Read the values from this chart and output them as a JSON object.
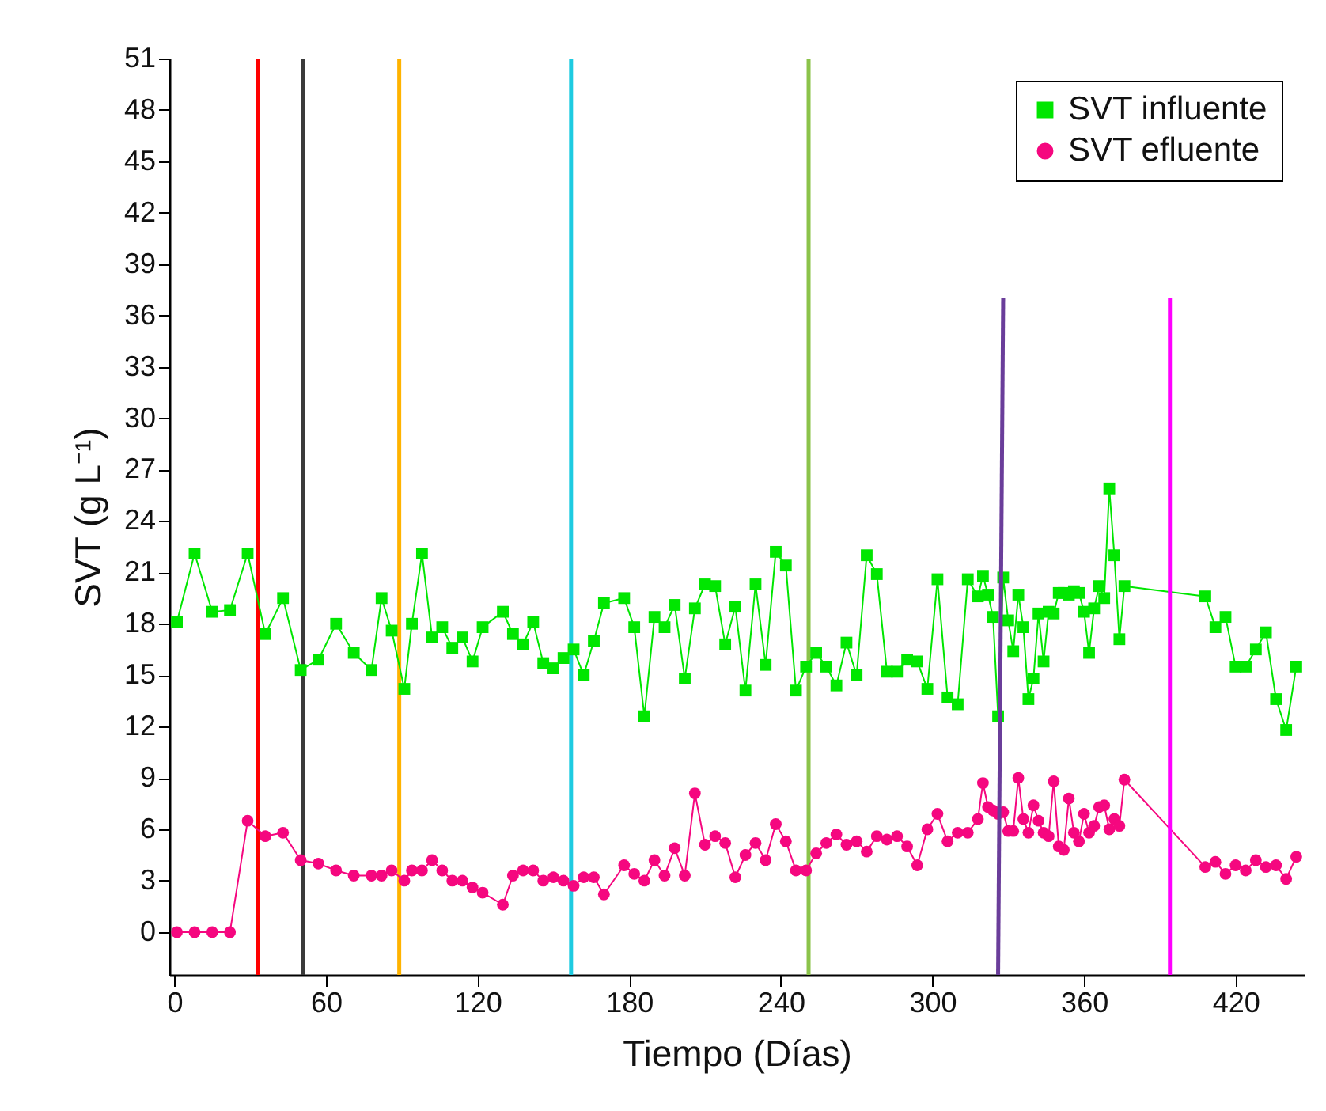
{
  "chart_data": {
    "type": "line",
    "xlabel": "Tiempo (Días)",
    "ylabel": "SVT (g L⁻¹)",
    "xlim": [
      -2,
      447
    ],
    "ylim": [
      -2.5,
      51
    ],
    "xticks": [
      0,
      60,
      120,
      180,
      240,
      300,
      360,
      420
    ],
    "yticks": [
      0,
      3,
      6,
      9,
      12,
      15,
      18,
      21,
      24,
      27,
      30,
      33,
      36,
      39,
      42,
      45,
      48,
      51
    ],
    "legend": "top right",
    "series": [
      {
        "name": "SVT influente",
        "color": "#00e600",
        "marker": "square",
        "x": [
          1,
          8,
          15,
          22,
          29,
          36,
          43,
          50,
          57,
          64,
          71,
          78,
          82,
          86,
          91,
          94,
          98,
          102,
          106,
          110,
          114,
          118,
          122,
          130,
          134,
          138,
          142,
          146,
          150,
          154,
          158,
          162,
          166,
          170,
          178,
          182,
          186,
          190,
          194,
          198,
          202,
          206,
          210,
          214,
          218,
          222,
          226,
          230,
          234,
          238,
          242,
          246,
          250,
          254,
          258,
          262,
          266,
          270,
          274,
          278,
          282,
          286,
          290,
          294,
          298,
          302,
          306,
          310,
          314,
          318,
          320,
          322,
          324,
          326,
          328,
          330,
          332,
          334,
          336,
          338,
          340,
          342,
          344,
          346,
          348,
          350,
          352,
          354,
          356,
          358,
          360,
          362,
          364,
          366,
          368,
          370,
          372,
          374,
          376,
          408,
          412,
          416,
          420,
          424,
          428,
          432,
          436,
          440,
          444
        ],
        "values": [
          18.1,
          22.1,
          18.7,
          18.8,
          22.1,
          17.4,
          19.5,
          15.3,
          15.9,
          18.0,
          16.3,
          15.3,
          19.5,
          17.6,
          14.2,
          18.0,
          22.1,
          17.2,
          17.8,
          16.6,
          17.2,
          15.8,
          17.8,
          18.7,
          17.4,
          16.8,
          18.1,
          15.7,
          15.4,
          16.0,
          16.5,
          15.0,
          17.0,
          19.2,
          19.5,
          17.8,
          12.6,
          18.4,
          17.8,
          19.1,
          14.8,
          18.9,
          20.3,
          20.2,
          16.8,
          19.0,
          14.1,
          20.3,
          15.6,
          22.2,
          21.4,
          14.1,
          15.5,
          16.3,
          15.5,
          14.4,
          16.9,
          15.0,
          22.0,
          20.9,
          15.2,
          15.2,
          15.9,
          15.8,
          14.2,
          20.6,
          13.7,
          13.3,
          20.6,
          19.6,
          20.8,
          19.7,
          18.4,
          12.6,
          20.7,
          18.2,
          16.4,
          19.7,
          17.8,
          13.6,
          14.8,
          18.6,
          15.8,
          18.7,
          18.6,
          19.8,
          19.8,
          19.7,
          19.9,
          19.8,
          18.7,
          16.3,
          18.9,
          20.2,
          19.5,
          25.9,
          22.0,
          17.1,
          20.2,
          19.6,
          17.8,
          18.4,
          15.5,
          15.5,
          16.5,
          17.5,
          13.6,
          11.8,
          15.5
        ]
      },
      {
        "name": "SVT efluente",
        "color": "#f5077f",
        "marker": "circle",
        "x": [
          1,
          8,
          15,
          22,
          29,
          36,
          43,
          50,
          57,
          64,
          71,
          78,
          82,
          86,
          91,
          94,
          98,
          102,
          106,
          110,
          114,
          118,
          122,
          130,
          134,
          138,
          142,
          146,
          150,
          154,
          158,
          162,
          166,
          170,
          178,
          182,
          186,
          190,
          194,
          198,
          202,
          206,
          210,
          214,
          218,
          222,
          226,
          230,
          234,
          238,
          242,
          246,
          250,
          254,
          258,
          262,
          266,
          270,
          274,
          278,
          282,
          286,
          290,
          294,
          298,
          302,
          306,
          310,
          314,
          318,
          320,
          322,
          324,
          326,
          328,
          330,
          332,
          334,
          336,
          338,
          340,
          342,
          344,
          346,
          348,
          350,
          352,
          354,
          356,
          358,
          360,
          362,
          364,
          366,
          368,
          370,
          372,
          374,
          376,
          408,
          412,
          416,
          420,
          424,
          428,
          432,
          436,
          440,
          444
        ],
        "values": [
          0,
          0,
          0,
          0,
          6.5,
          5.6,
          5.8,
          4.2,
          4.0,
          3.6,
          3.3,
          3.3,
          3.3,
          3.6,
          3.0,
          3.6,
          3.6,
          4.2,
          3.6,
          3.0,
          3.0,
          2.6,
          2.3,
          1.6,
          3.3,
          3.6,
          3.6,
          3.0,
          3.2,
          3.0,
          2.7,
          3.2,
          3.2,
          2.2,
          3.9,
          3.4,
          3.0,
          4.2,
          3.3,
          4.9,
          3.3,
          8.1,
          5.1,
          5.6,
          5.2,
          3.2,
          4.5,
          5.2,
          4.2,
          6.3,
          5.3,
          3.6,
          3.6,
          4.6,
          5.2,
          5.7,
          5.1,
          5.3,
          4.7,
          5.6,
          5.4,
          5.6,
          5.0,
          3.9,
          6.0,
          6.9,
          5.3,
          5.8,
          5.8,
          6.6,
          8.7,
          7.3,
          7.1,
          6.9,
          7.0,
          5.9,
          5.9,
          9.0,
          6.6,
          5.8,
          7.4,
          6.5,
          5.8,
          5.6,
          8.8,
          5.0,
          4.8,
          7.8,
          5.8,
          5.3,
          6.9,
          5.8,
          6.2,
          7.3,
          7.4,
          6.0,
          6.6,
          6.2,
          8.9,
          3.8,
          4.1,
          3.4,
          3.9,
          3.6,
          4.2,
          3.8,
          3.9,
          3.1,
          4.4
        ]
      },
      {
        "color": "#6a3d9a",
        "marker": "none",
        "x": [
          326,
          328
        ],
        "values": [
          -2.5,
          37
        ]
      },
      {
        "color": "#ff00ff",
        "marker": "none",
        "x": [
          394,
          394
        ],
        "values": [
          -2.5,
          37
        ]
      }
    ],
    "ref_lines": [
      {
        "axis": "x",
        "value": 33,
        "color": "#ff0000"
      },
      {
        "axis": "x",
        "value": 51,
        "color": "#3a3a3a"
      },
      {
        "axis": "x",
        "value": 89,
        "color": "#ffb300"
      },
      {
        "axis": "x",
        "value": 157,
        "color": "#1ecbe1"
      },
      {
        "axis": "x",
        "value": 251,
        "color": "#8bc34a"
      }
    ]
  }
}
